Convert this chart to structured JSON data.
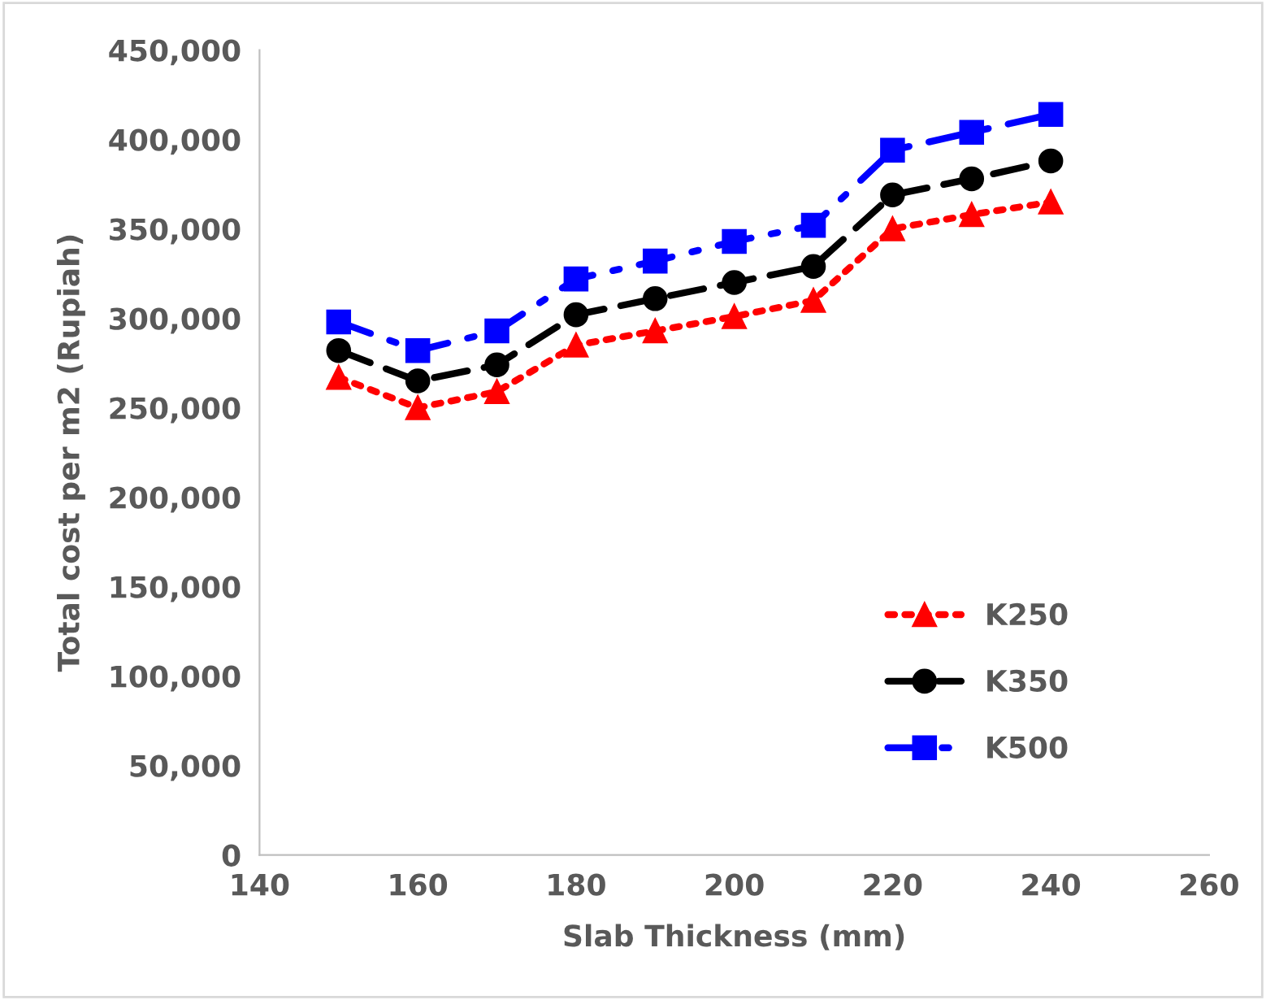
{
  "chart_data": {
    "type": "line",
    "xlabel": "Slab Thickness (mm)",
    "ylabel": "Total cost per m2 (Rupiah)",
    "x": [
      150,
      160,
      170,
      180,
      190,
      200,
      210,
      220,
      230,
      240
    ],
    "series": [
      {
        "name": "K250",
        "color": "#ff0000",
        "marker": "triangle",
        "line_style": "dotted",
        "values": [
          267000,
          250000,
          259000,
          285000,
          293000,
          301000,
          310000,
          350000,
          358000,
          365000
        ]
      },
      {
        "name": "K350",
        "color": "#000000",
        "marker": "circle",
        "line_style": "dashed",
        "values": [
          282000,
          265000,
          274000,
          302000,
          311000,
          320000,
          329000,
          369000,
          378000,
          388000
        ]
      },
      {
        "name": "K500",
        "color": "#0000ff",
        "marker": "square",
        "line_style": "dashdot",
        "values": [
          298000,
          282000,
          293000,
          322000,
          332000,
          343000,
          352000,
          394000,
          404000,
          414000
        ]
      }
    ],
    "xlim": [
      140,
      260
    ],
    "xticks": [
      140,
      160,
      180,
      200,
      220,
      240,
      260
    ],
    "ylim": [
      0,
      450000
    ],
    "yticks": [
      {
        "value": 0,
        "label": "0"
      },
      {
        "value": 50000,
        "label": "50,000"
      },
      {
        "value": 100000,
        "label": "100,000"
      },
      {
        "value": 150000,
        "label": "150,000"
      },
      {
        "value": 200000,
        "label": "200,000"
      },
      {
        "value": 250000,
        "label": "250,000"
      },
      {
        "value": 300000,
        "label": "300,000"
      },
      {
        "value": 350000,
        "label": "350,000"
      },
      {
        "value": 400000,
        "label": "400,000"
      },
      {
        "value": 450000,
        "label": "450,000"
      }
    ],
    "grid": false,
    "legend": "bottom right"
  }
}
